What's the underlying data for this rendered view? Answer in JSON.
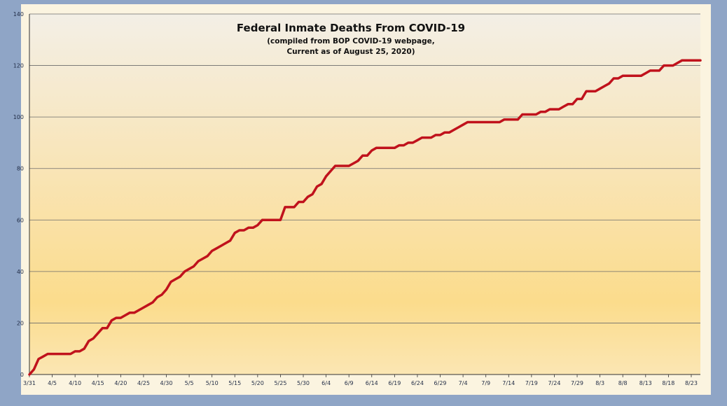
{
  "chart_data": {
    "type": "line",
    "title": "Federal Inmate Deaths From COVID-19",
    "subtitle_lines": [
      "(compiled from BOP COVID-19 webpage,",
      "Current as of August 25, 2020)"
    ],
    "xlabel": "",
    "ylabel": "",
    "ylim": [
      0,
      140
    ],
    "yticks": [
      0,
      20,
      40,
      60,
      80,
      100,
      120,
      140
    ],
    "xlim": [
      "3/31",
      "8/25"
    ],
    "xticks": [
      "3/31",
      "4/5",
      "4/10",
      "4/15",
      "4/20",
      "4/25",
      "4/30",
      "5/5",
      "5/10",
      "5/15",
      "5/20",
      "5/25",
      "5/30",
      "6/4",
      "6/9",
      "6/14",
      "6/19",
      "6/24",
      "6/29",
      "7/4",
      "7/9",
      "7/14",
      "7/19",
      "7/24",
      "7/29",
      "8/3",
      "8/8",
      "8/13",
      "8/18",
      "8/23"
    ],
    "grid": true,
    "line_color": "#c0121c",
    "series": [
      {
        "x": [
          "3/31",
          "4/1",
          "4/2",
          "4/3",
          "4/4",
          "4/5",
          "4/6",
          "4/7",
          "4/8",
          "4/9",
          "4/10",
          "4/11",
          "4/12",
          "4/13",
          "4/14",
          "4/15",
          "4/16",
          "4/17",
          "4/18",
          "4/19",
          "4/20",
          "4/21",
          "4/22",
          "4/23",
          "4/24",
          "4/25",
          "4/26",
          "4/27",
          "4/28",
          "4/29",
          "4/30",
          "5/1",
          "5/2",
          "5/3",
          "5/4",
          "5/5",
          "5/6",
          "5/7",
          "5/8",
          "5/9",
          "5/10",
          "5/11",
          "5/12",
          "5/13",
          "5/14",
          "5/15",
          "5/16",
          "5/17",
          "5/18",
          "5/19",
          "5/20",
          "5/21",
          "5/22",
          "5/23",
          "5/24",
          "5/25",
          "5/26",
          "5/27",
          "5/28",
          "5/29",
          "5/30",
          "5/31",
          "6/1",
          "6/2",
          "6/3",
          "6/4",
          "6/5",
          "6/6",
          "6/7",
          "6/8",
          "6/9",
          "6/10",
          "6/11",
          "6/12",
          "6/13",
          "6/14",
          "6/15",
          "6/16",
          "6/17",
          "6/18",
          "6/19",
          "6/20",
          "6/21",
          "6/22",
          "6/23",
          "6/24",
          "6/25",
          "6/26",
          "6/27",
          "6/28",
          "6/29",
          "6/30",
          "7/1",
          "7/2",
          "7/3",
          "7/4",
          "7/5",
          "7/6",
          "7/7",
          "7/8",
          "7/9",
          "7/10",
          "7/11",
          "7/12",
          "7/13",
          "7/14",
          "7/15",
          "7/16",
          "7/17",
          "7/18",
          "7/19",
          "7/20",
          "7/21",
          "7/22",
          "7/23",
          "7/24",
          "7/25",
          "7/26",
          "7/27",
          "7/28",
          "7/29",
          "7/30",
          "7/31",
          "8/1",
          "8/2",
          "8/3",
          "8/4",
          "8/5",
          "8/6",
          "8/7",
          "8/8",
          "8/9",
          "8/10",
          "8/11",
          "8/12",
          "8/13",
          "8/14",
          "8/15",
          "8/16",
          "8/17",
          "8/18",
          "8/19",
          "8/20",
          "8/21",
          "8/22",
          "8/23",
          "8/24",
          "8/25"
        ],
        "values": [
          0,
          2,
          6,
          7,
          8,
          8,
          8,
          8,
          8,
          8,
          9,
          9,
          10,
          13,
          14,
          16,
          18,
          18,
          21,
          22,
          22,
          23,
          24,
          24,
          25,
          26,
          27,
          28,
          30,
          31,
          33,
          36,
          37,
          38,
          40,
          41,
          42,
          44,
          45,
          46,
          48,
          49,
          50,
          51,
          52,
          55,
          56,
          56,
          57,
          57,
          58,
          60,
          60,
          60,
          60,
          60,
          65,
          65,
          65,
          67,
          67,
          69,
          70,
          73,
          74,
          77,
          79,
          81,
          81,
          81,
          81,
          82,
          83,
          85,
          85,
          87,
          88,
          88,
          88,
          88,
          88,
          89,
          89,
          90,
          90,
          91,
          92,
          92,
          92,
          93,
          93,
          94,
          94,
          95,
          96,
          97,
          98,
          98,
          98,
          98,
          98,
          98,
          98,
          98,
          99,
          99,
          99,
          99,
          101,
          101,
          101,
          101,
          102,
          102,
          103,
          103,
          103,
          104,
          105,
          105,
          107,
          107,
          110,
          110,
          110,
          111,
          112,
          113,
          115,
          115,
          116,
          116,
          116,
          116,
          116,
          117,
          118,
          118,
          118,
          120,
          120,
          120,
          121,
          122,
          122,
          122,
          122,
          122
        ]
      }
    ]
  }
}
